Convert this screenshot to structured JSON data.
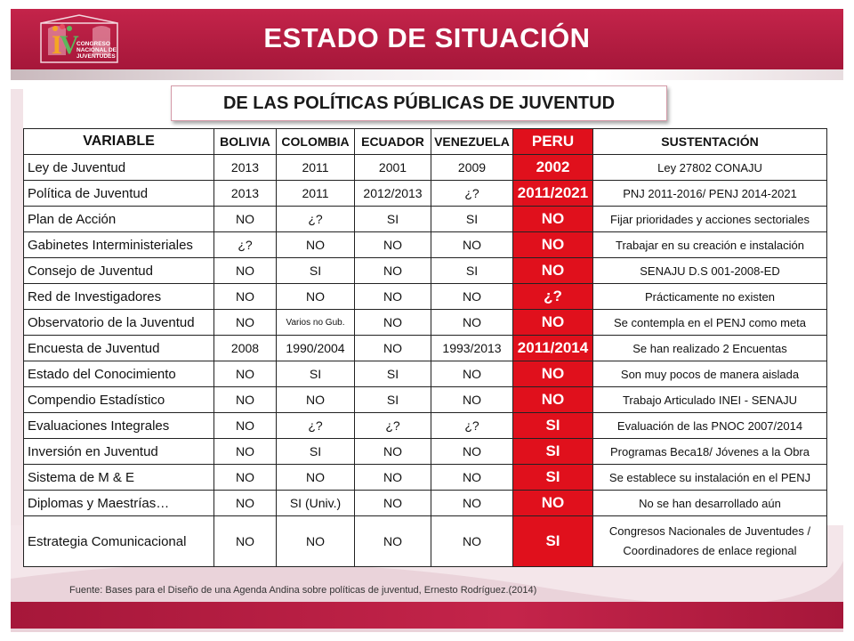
{
  "header": {
    "title": "ESTADO DE SITUACIÓN",
    "logo_text": "CONGRESO NACIONAL DE JUVENTUDES",
    "logo_numeral": "IV"
  },
  "subtitle": "DE LAS POLÍTICAS PÚBLICAS DE JUVENTUD",
  "colors": {
    "brand": "#b01c40",
    "peru_column": "#e0101c"
  },
  "table": {
    "headers": [
      "VARIABLE",
      "BOLIVIA",
      "COLOMBIA",
      "ECUADOR",
      "VENEZUELA",
      "PERU",
      "SUSTENTACIÓN"
    ],
    "rows": [
      [
        "Ley de Juventud",
        "2013",
        "2011",
        "2001",
        "2009",
        "2002",
        "Ley 27802 CONAJU"
      ],
      [
        "Política de Juventud",
        "2013",
        "2011",
        "2012/2013",
        "¿?",
        "2011/2021",
        "PNJ 2011-2016/ PENJ 2014-2021"
      ],
      [
        "Plan de Acción",
        "NO",
        "¿?",
        "SI",
        "SI",
        "NO",
        "Fijar prioridades y acciones sectoriales"
      ],
      [
        "Gabinetes Interministeriales",
        "¿?",
        "NO",
        "NO",
        "NO",
        "NO",
        "Trabajar en su creación e instalación"
      ],
      [
        "Consejo de Juventud",
        "NO",
        "SI",
        "NO",
        "SI",
        "NO",
        "SENAJU D.S 001-2008-ED"
      ],
      [
        "Red de Investigadores",
        "NO",
        "NO",
        "NO",
        "NO",
        "¿?",
        "Prácticamente no existen"
      ],
      [
        "Observatorio de la Juventud",
        "NO",
        "Varios no Gub.",
        "NO",
        "NO",
        "NO",
        "Se contempla en el PENJ como meta"
      ],
      [
        "Encuesta de Juventud",
        "2008",
        "1990/2004",
        "NO",
        "1993/2013",
        "2011/2014",
        "Se han realizado 2 Encuentas"
      ],
      [
        "Estado del Conocimiento",
        "NO",
        "SI",
        "SI",
        "NO",
        "NO",
        "Son muy pocos de manera aislada"
      ],
      [
        "Compendio Estadístico",
        "NO",
        "NO",
        "SI",
        "NO",
        "NO",
        "Trabajo Articulado INEI - SENAJU"
      ],
      [
        "Evaluaciones Integrales",
        "NO",
        "¿?",
        "¿?",
        "¿?",
        "SI",
        "Evaluación de las PNOC 2007/2014"
      ],
      [
        "Inversión en Juventud",
        "NO",
        "SI",
        "NO",
        "NO",
        "SI",
        "Programas Beca18/ Jóvenes a la Obra"
      ],
      [
        "Sistema de M & E",
        "NO",
        "NO",
        "NO",
        "NO",
        "SI",
        "Se establece su instalación en el PENJ"
      ],
      [
        "Diplomas y Maestrías…",
        "NO",
        "SI (Univ.)",
        "NO",
        "NO",
        "NO",
        "No se han desarrollado aún"
      ],
      [
        "Estrategia Comunicacional",
        "NO",
        "NO",
        "NO",
        "NO",
        "SI",
        "Congresos Nacionales de Juventudes / Coordinadores de enlace regional"
      ]
    ]
  },
  "source": "Fuente: Bases para el Diseño de una Agenda Andina sobre políticas de juventud, Ernesto Rodríguez.(2014)"
}
